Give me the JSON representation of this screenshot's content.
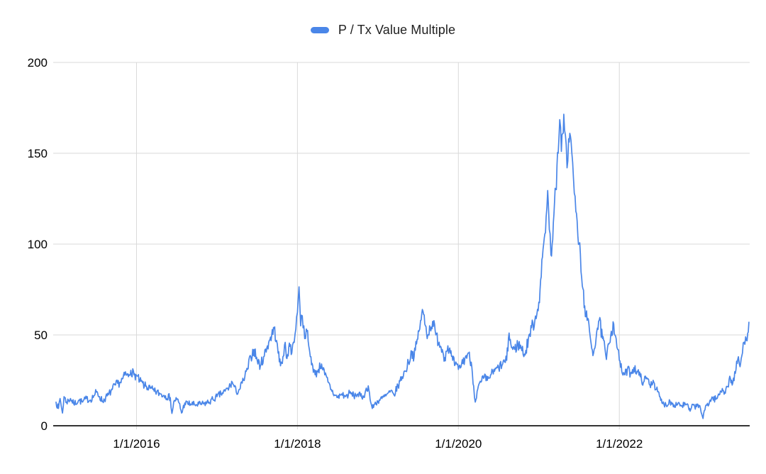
{
  "page": {
    "background": "#ffffff"
  },
  "legend": {
    "label": "P / Tx Value Multiple",
    "swatch_color": "#4a86e8"
  },
  "chart_data": {
    "type": "line",
    "title": "",
    "xlabel": "",
    "ylabel": "",
    "legend_position": "top-center",
    "grid": true,
    "x_axis": {
      "range": [
        2015.0,
        2023.62
      ],
      "tick_values": [
        2016,
        2018,
        2020,
        2022
      ],
      "tick_labels": [
        "1/1/2016",
        "1/1/2018",
        "1/1/2020",
        "1/1/2022"
      ]
    },
    "y_axis": {
      "range": [
        0,
        200
      ],
      "tick_values": [
        0,
        50,
        100,
        150,
        200
      ],
      "tick_labels": [
        "0",
        "50",
        "100",
        "150",
        "200"
      ]
    },
    "style": {
      "series_color": "#4a86e8",
      "grid_color": "#d9d9d9",
      "axis_color": "#333333",
      "label_color": "#000000",
      "line_width": 1.7,
      "noise_amplitude_base": 1.2,
      "noise_amplitude_per_value": 0.05,
      "noise_amplitude_max": 6,
      "noise_step_years": 0.008,
      "value_clamp": [
        1.2,
        172
      ]
    },
    "series": [
      {
        "name": "P / Tx Value Multiple",
        "color": "#4a86e8",
        "x_unit": "decimal_year",
        "points": [
          [
            2015.0,
            13
          ],
          [
            2015.03,
            9.5
          ],
          [
            2015.05,
            15
          ],
          [
            2015.08,
            7
          ],
          [
            2015.1,
            16
          ],
          [
            2015.13,
            13
          ],
          [
            2015.18,
            15
          ],
          [
            2015.22,
            12
          ],
          [
            2015.28,
            14
          ],
          [
            2015.33,
            13
          ],
          [
            2015.38,
            15
          ],
          [
            2015.42,
            14
          ],
          [
            2015.47,
            16.5
          ],
          [
            2015.5,
            18.5
          ],
          [
            2015.54,
            16
          ],
          [
            2015.58,
            13.5
          ],
          [
            2015.65,
            17
          ],
          [
            2015.7,
            20
          ],
          [
            2015.74,
            22.5
          ],
          [
            2015.8,
            24
          ],
          [
            2015.83,
            26
          ],
          [
            2015.87,
            28.5
          ],
          [
            2015.9,
            27
          ],
          [
            2015.93,
            30.5
          ],
          [
            2015.97,
            28
          ],
          [
            2016.0,
            27.5
          ],
          [
            2016.04,
            24.5
          ],
          [
            2016.1,
            22
          ],
          [
            2016.17,
            20.5
          ],
          [
            2016.22,
            19
          ],
          [
            2016.3,
            17.5
          ],
          [
            2016.36,
            16.5
          ],
          [
            2016.42,
            15.5
          ],
          [
            2016.44,
            6.8
          ],
          [
            2016.47,
            14
          ],
          [
            2016.5,
            14.5
          ],
          [
            2016.53,
            12.5
          ],
          [
            2016.56,
            7
          ],
          [
            2016.6,
            12.5
          ],
          [
            2016.67,
            12
          ],
          [
            2016.75,
            11.5
          ],
          [
            2016.83,
            12
          ],
          [
            2016.9,
            13
          ],
          [
            2016.95,
            14.5
          ],
          [
            2017.0,
            16
          ],
          [
            2017.05,
            17.5
          ],
          [
            2017.1,
            19
          ],
          [
            2017.15,
            21
          ],
          [
            2017.19,
            24
          ],
          [
            2017.24,
            18.5
          ],
          [
            2017.28,
            20
          ],
          [
            2017.33,
            25
          ],
          [
            2017.38,
            31
          ],
          [
            2017.42,
            38
          ],
          [
            2017.46,
            42
          ],
          [
            2017.5,
            36
          ],
          [
            2017.54,
            33
          ],
          [
            2017.58,
            38
          ],
          [
            2017.62,
            43
          ],
          [
            2017.65,
            47
          ],
          [
            2017.68,
            50
          ],
          [
            2017.71,
            53.5
          ],
          [
            2017.74,
            47
          ],
          [
            2017.76,
            40
          ],
          [
            2017.79,
            33
          ],
          [
            2017.82,
            38
          ],
          [
            2017.84,
            44.5
          ],
          [
            2017.87,
            37
          ],
          [
            2017.9,
            45.5
          ],
          [
            2017.93,
            40
          ],
          [
            2017.95,
            46
          ],
          [
            2017.97,
            50.5
          ],
          [
            2017.99,
            60
          ],
          [
            2018.01,
            70
          ],
          [
            2018.02,
            76.5
          ],
          [
            2018.03,
            66
          ],
          [
            2018.04,
            55
          ],
          [
            2018.06,
            60.5
          ],
          [
            2018.08,
            55
          ],
          [
            2018.1,
            48
          ],
          [
            2018.12,
            52
          ],
          [
            2018.14,
            44
          ],
          [
            2018.16,
            38
          ],
          [
            2018.19,
            33
          ],
          [
            2018.22,
            28
          ],
          [
            2018.26,
            31
          ],
          [
            2018.3,
            34
          ],
          [
            2018.34,
            28
          ],
          [
            2018.38,
            24
          ],
          [
            2018.42,
            20
          ],
          [
            2018.46,
            17
          ],
          [
            2018.5,
            15.5
          ],
          [
            2018.55,
            17.5
          ],
          [
            2018.6,
            16
          ],
          [
            2018.65,
            18
          ],
          [
            2018.7,
            16.5
          ],
          [
            2018.75,
            17.5
          ],
          [
            2018.8,
            15.5
          ],
          [
            2018.84,
            18
          ],
          [
            2018.88,
            22
          ],
          [
            2018.91,
            13
          ],
          [
            2018.93,
            9.5
          ],
          [
            2018.96,
            12
          ],
          [
            2019.0,
            13.5
          ],
          [
            2019.05,
            15
          ],
          [
            2019.1,
            16.5
          ],
          [
            2019.15,
            18.5
          ],
          [
            2019.2,
            17
          ],
          [
            2019.25,
            22
          ],
          [
            2019.3,
            27
          ],
          [
            2019.34,
            30
          ],
          [
            2019.38,
            35
          ],
          [
            2019.42,
            41
          ],
          [
            2019.45,
            38
          ],
          [
            2019.48,
            45
          ],
          [
            2019.51,
            52
          ],
          [
            2019.53,
            58
          ],
          [
            2019.56,
            63
          ],
          [
            2019.59,
            55
          ],
          [
            2019.62,
            50
          ],
          [
            2019.65,
            54
          ],
          [
            2019.68,
            57.5
          ],
          [
            2019.72,
            50
          ],
          [
            2019.76,
            46
          ],
          [
            2019.8,
            42
          ],
          [
            2019.83,
            37.5
          ],
          [
            2019.87,
            44
          ],
          [
            2019.9,
            40
          ],
          [
            2019.93,
            36
          ],
          [
            2019.96,
            33.5
          ],
          [
            2020.0,
            31
          ],
          [
            2020.04,
            34
          ],
          [
            2020.08,
            37
          ],
          [
            2020.12,
            40
          ],
          [
            2020.16,
            35
          ],
          [
            2020.19,
            22
          ],
          [
            2020.21,
            13
          ],
          [
            2020.24,
            20
          ],
          [
            2020.28,
            24
          ],
          [
            2020.32,
            26.5
          ],
          [
            2020.36,
            25
          ],
          [
            2020.4,
            28
          ],
          [
            2020.45,
            30
          ],
          [
            2020.5,
            32
          ],
          [
            2020.55,
            34
          ],
          [
            2020.6,
            36
          ],
          [
            2020.63,
            51
          ],
          [
            2020.66,
            43
          ],
          [
            2020.7,
            42
          ],
          [
            2020.74,
            45
          ],
          [
            2020.78,
            43
          ],
          [
            2020.83,
            39
          ],
          [
            2020.87,
            48
          ],
          [
            2020.91,
            54
          ],
          [
            2020.95,
            58
          ],
          [
            2021.0,
            68
          ],
          [
            2021.03,
            82
          ],
          [
            2021.06,
            100
          ],
          [
            2021.09,
            115
          ],
          [
            2021.11,
            129.5
          ],
          [
            2021.13,
            108
          ],
          [
            2021.15,
            94
          ],
          [
            2021.18,
            112
          ],
          [
            2021.21,
            130
          ],
          [
            2021.24,
            150
          ],
          [
            2021.26,
            168.5
          ],
          [
            2021.28,
            151
          ],
          [
            2021.31,
            171.5
          ],
          [
            2021.33,
            160
          ],
          [
            2021.35,
            142
          ],
          [
            2021.37,
            158
          ],
          [
            2021.4,
            157
          ],
          [
            2021.42,
            145
          ],
          [
            2021.44,
            128
          ],
          [
            2021.46,
            118
          ],
          [
            2021.5,
            100
          ],
          [
            2021.54,
            77
          ],
          [
            2021.57,
            66
          ],
          [
            2021.6,
            58
          ],
          [
            2021.63,
            52
          ],
          [
            2021.65,
            45
          ],
          [
            2021.68,
            40
          ],
          [
            2021.72,
            52
          ],
          [
            2021.75,
            58
          ],
          [
            2021.79,
            48
          ],
          [
            2021.82,
            43
          ],
          [
            2021.84,
            36.5
          ],
          [
            2021.87,
            45
          ],
          [
            2021.9,
            52
          ],
          [
            2021.93,
            56
          ],
          [
            2021.96,
            48
          ],
          [
            2021.98,
            42
          ],
          [
            2022.0,
            36
          ],
          [
            2022.03,
            30
          ],
          [
            2022.07,
            28
          ],
          [
            2022.1,
            31
          ],
          [
            2022.14,
            29
          ],
          [
            2022.18,
            32
          ],
          [
            2022.22,
            30
          ],
          [
            2022.26,
            27
          ],
          [
            2022.3,
            24
          ],
          [
            2022.34,
            26.5
          ],
          [
            2022.38,
            22.5
          ],
          [
            2022.42,
            25
          ],
          [
            2022.46,
            20
          ],
          [
            2022.5,
            16
          ],
          [
            2022.53,
            12.5
          ],
          [
            2022.58,
            11.5
          ],
          [
            2022.63,
            13.5
          ],
          [
            2022.68,
            11.5
          ],
          [
            2022.73,
            12.5
          ],
          [
            2022.78,
            11
          ],
          [
            2022.82,
            12
          ],
          [
            2022.86,
            10
          ],
          [
            2022.88,
            8
          ],
          [
            2022.92,
            11.5
          ],
          [
            2022.96,
            10.5
          ],
          [
            2023.0,
            11
          ],
          [
            2023.04,
            4
          ],
          [
            2023.08,
            11.5
          ],
          [
            2023.12,
            13
          ],
          [
            2023.16,
            15.5
          ],
          [
            2023.2,
            14.5
          ],
          [
            2023.24,
            17
          ],
          [
            2023.28,
            20.5
          ],
          [
            2023.31,
            18.5
          ],
          [
            2023.34,
            21.5
          ],
          [
            2023.38,
            26
          ],
          [
            2023.41,
            23.5
          ],
          [
            2023.45,
            31
          ],
          [
            2023.48,
            38
          ],
          [
            2023.5,
            32.5
          ],
          [
            2023.53,
            40
          ],
          [
            2023.55,
            46
          ],
          [
            2023.57,
            49
          ],
          [
            2023.58,
            47
          ],
          [
            2023.61,
            57
          ]
        ]
      }
    ]
  }
}
